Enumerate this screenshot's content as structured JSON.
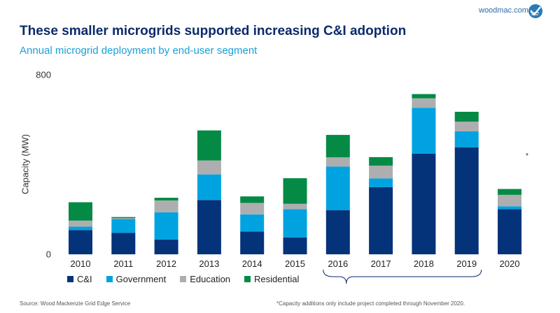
{
  "header": {
    "title": "These smaller microgrids supported increasing C&I adoption",
    "subtitle": "Annual microgrid deployment by end-user segment",
    "brand": "woodmac.com"
  },
  "footer": {
    "source": "Source: Wood Mackenzie Grid Edge Service",
    "note": "*Capacity additions only include project completed through November 2020."
  },
  "annotation": "*",
  "chart_data": {
    "type": "bar",
    "stacked": true,
    "title": "",
    "ylabel": "Capacity (MW)",
    "xlabel": "",
    "ylim": [
      0,
      800
    ],
    "yticks": [
      "0",
      "800"
    ],
    "grid": false,
    "legend_position": "bottom-left",
    "categories": [
      "2010",
      "2011",
      "2012",
      "2013",
      "2014",
      "2015",
      "2016",
      "2017",
      "2018",
      "2019",
      "2020"
    ],
    "series": [
      {
        "name": "C&I",
        "color": "#05337a",
        "values": [
          108,
          96,
          66,
          242,
          101,
          75,
          197,
          299,
          449,
          477,
          201
        ]
      },
      {
        "name": "Government",
        "color": "#00a3e0",
        "values": [
          15,
          61,
          121,
          114,
          77,
          126,
          194,
          39,
          204,
          71,
          13
        ]
      },
      {
        "name": "Education",
        "color": "#aeaeb0",
        "values": [
          27,
          4,
          53,
          62,
          51,
          24,
          41,
          57,
          42,
          43,
          51
        ]
      },
      {
        "name": "Residential",
        "color": "#048a45",
        "values": [
          82,
          5,
          12,
          134,
          29,
          114,
          100,
          38,
          19,
          44,
          26
        ]
      }
    ],
    "bracket_range": [
      "2016",
      "2019"
    ]
  }
}
